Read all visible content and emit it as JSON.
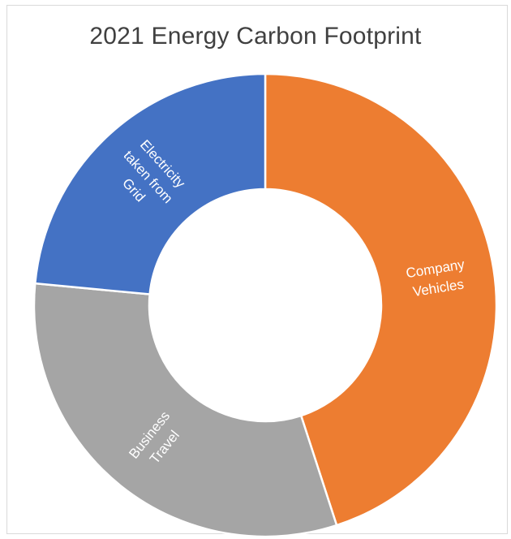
{
  "chart_data": {
    "type": "pie",
    "variant": "doughnut",
    "title": "2021 Energy Carbon Footprint",
    "series": [
      {
        "values": [
          45,
          31.5,
          23.5
        ]
      }
    ],
    "categories": [
      "Company Vehicles",
      "Business Travel",
      "Electricity taken from Grid"
    ],
    "slices": [
      {
        "label": "Company Vehicles",
        "label_lines": [
          "Company",
          "Vehicles"
        ],
        "value": 45,
        "color": "#ED7D31"
      },
      {
        "label": "Business Travel",
        "label_lines": [
          "Business",
          "Travel"
        ],
        "value": 31.5,
        "color": "#A5A5A5"
      },
      {
        "label": "Electricity taken from Grid",
        "label_lines": [
          "Electricity",
          "taken from",
          "Grid"
        ],
        "value": 23.5,
        "color": "#4472C4"
      }
    ],
    "legend": "none",
    "data_labels": "category-name-inside"
  }
}
